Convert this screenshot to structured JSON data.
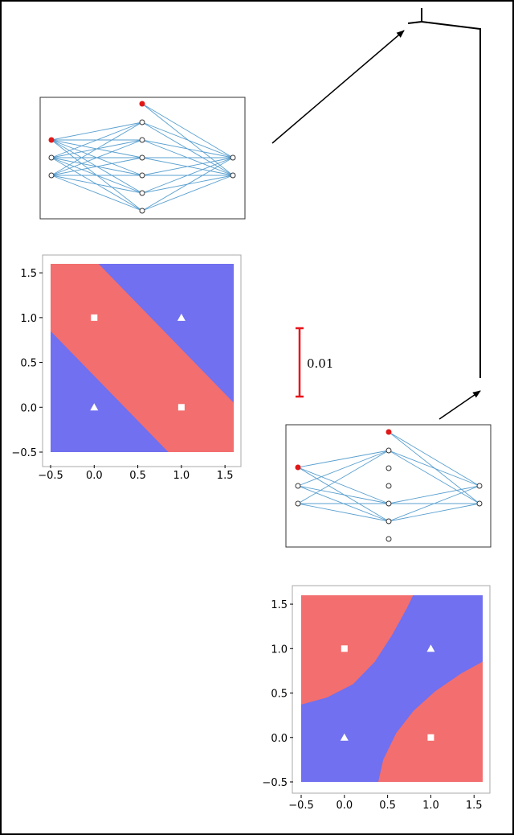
{
  "scale_bar": {
    "label": "0.01",
    "color": "#e8141c"
  },
  "colors": {
    "class_a": "#f36e6e",
    "class_b": "#7070f0",
    "edge": "#5aa0d0",
    "highlight": "#e01818",
    "marker": "#ffffff"
  },
  "networks": [
    {
      "layers": [
        3,
        6,
        2
      ],
      "bias": {
        "input": true,
        "hidden": true
      },
      "hidden_active": [
        true,
        true,
        true,
        true,
        true,
        true
      ]
    },
    {
      "layers": [
        3,
        6,
        2
      ],
      "bias": {
        "input": true,
        "hidden": true
      },
      "hidden_active": [
        true,
        false,
        false,
        true,
        true,
        false
      ]
    }
  ],
  "chart_data": [
    {
      "type": "heatmap",
      "title": "",
      "xlabel": "",
      "ylabel": "",
      "xlim": [
        -0.5,
        1.6
      ],
      "ylim": [
        -0.5,
        1.6
      ],
      "xticks": [
        "−0.5",
        "0.0",
        "0.5",
        "1.0",
        "1.5"
      ],
      "yticks": [
        "−0.5",
        "0.0",
        "0.5",
        "1.0",
        "1.5"
      ],
      "regions": "diagonal band through (0,1) and (1,0) is red; upper-right and lower-left corners are blue",
      "points": [
        {
          "x": 0,
          "y": 1,
          "marker": "square"
        },
        {
          "x": 1,
          "y": 0,
          "marker": "square"
        },
        {
          "x": 0,
          "y": 0,
          "marker": "triangle"
        },
        {
          "x": 1,
          "y": 1,
          "marker": "triangle"
        }
      ]
    },
    {
      "type": "heatmap",
      "title": "",
      "xlabel": "",
      "ylabel": "",
      "xlim": [
        -0.5,
        1.6
      ],
      "ylim": [
        -0.5,
        1.6
      ],
      "xticks": [
        "−0.5",
        "0.0",
        "0.5",
        "1.0",
        "1.5"
      ],
      "yticks": [
        "−0.5",
        "0.0",
        "0.5",
        "1.0",
        "1.5"
      ],
      "regions": "curved blue band along the diagonal through (0,0) and (1,1); red upper-left and lower-right corners",
      "points": [
        {
          "x": 0,
          "y": 1,
          "marker": "square"
        },
        {
          "x": 1,
          "y": 0,
          "marker": "square"
        },
        {
          "x": 0,
          "y": 0,
          "marker": "triangle"
        },
        {
          "x": 1,
          "y": 1,
          "marker": "triangle"
        }
      ]
    }
  ]
}
